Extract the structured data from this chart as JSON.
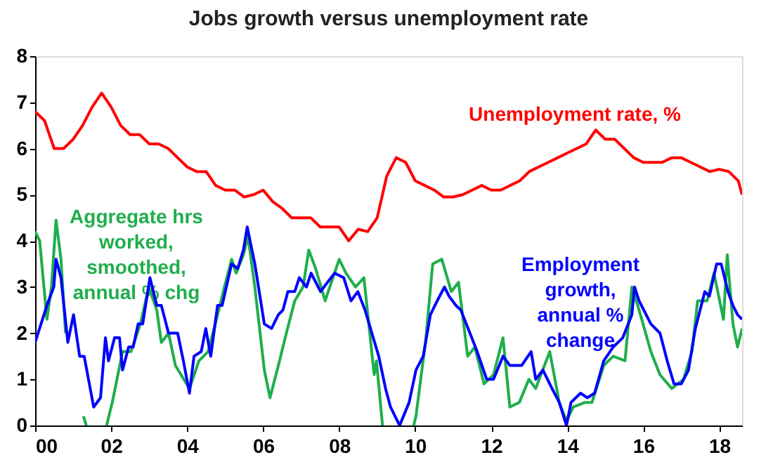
{
  "chart_data": {
    "type": "line",
    "title": "Jobs growth versus unemployment rate",
    "xlim": [
      2000,
      2018.6
    ],
    "xticks": [
      {
        "value": 2000,
        "label": "00"
      },
      {
        "value": 2002,
        "label": "02"
      },
      {
        "value": 2004,
        "label": "04"
      },
      {
        "value": 2006,
        "label": "06"
      },
      {
        "value": 2008,
        "label": "08"
      },
      {
        "value": 2010,
        "label": "10"
      },
      {
        "value": 2012,
        "label": "12"
      },
      {
        "value": 2014,
        "label": "14"
      },
      {
        "value": 2016,
        "label": "16"
      },
      {
        "value": 2018,
        "label": "18"
      }
    ],
    "ylim": [
      0,
      8
    ],
    "yticks": [
      0,
      1,
      2,
      3,
      4,
      5,
      6,
      7,
      8
    ],
    "grid": false,
    "legend": false,
    "marker": "none",
    "line_style": "solid",
    "series": [
      {
        "name": "Unemployment rate, %",
        "color": "#ff0000",
        "x": [
          2000,
          2000.25,
          2000.5,
          2000.75,
          2001,
          2001.25,
          2001.5,
          2001.75,
          2002,
          2002.25,
          2002.5,
          2002.75,
          2003,
          2003.25,
          2003.5,
          2003.75,
          2004,
          2004.25,
          2004.5,
          2004.75,
          2005,
          2005.25,
          2005.5,
          2005.75,
          2006,
          2006.25,
          2006.5,
          2006.75,
          2007,
          2007.25,
          2007.5,
          2007.75,
          2008,
          2008.25,
          2008.5,
          2008.75,
          2009,
          2009.25,
          2009.5,
          2009.75,
          2010,
          2010.25,
          2010.5,
          2010.75,
          2011,
          2011.25,
          2011.5,
          2011.75,
          2012,
          2012.25,
          2012.5,
          2012.75,
          2013,
          2013.25,
          2013.5,
          2013.75,
          2014,
          2014.25,
          2014.5,
          2014.75,
          2015,
          2015.25,
          2015.5,
          2015.75,
          2016,
          2016.25,
          2016.5,
          2016.75,
          2017,
          2017.25,
          2017.5,
          2017.75,
          2018,
          2018.25,
          2018.5,
          2018.6
        ],
        "values": [
          6.8,
          6.6,
          6.0,
          6.0,
          6.2,
          6.5,
          6.9,
          7.2,
          6.9,
          6.5,
          6.3,
          6.3,
          6.1,
          6.1,
          6.0,
          5.8,
          5.6,
          5.5,
          5.5,
          5.2,
          5.1,
          5.1,
          4.95,
          5.0,
          5.1,
          4.85,
          4.7,
          4.5,
          4.5,
          4.5,
          4.3,
          4.3,
          4.3,
          4.0,
          4.25,
          4.2,
          4.5,
          5.4,
          5.8,
          5.7,
          5.3,
          5.2,
          5.1,
          4.95,
          4.95,
          5.0,
          5.1,
          5.2,
          5.1,
          5.1,
          5.2,
          5.3,
          5.5,
          5.6,
          5.7,
          5.8,
          5.9,
          6.0,
          6.1,
          6.4,
          6.2,
          6.2,
          6.0,
          5.8,
          5.7,
          5.7,
          5.7,
          5.8,
          5.8,
          5.7,
          5.6,
          5.5,
          5.55,
          5.5,
          5.3,
          5.0
        ]
      },
      {
        "name": "Aggregate hrs\nworked,\nsmoothed,\nannual % chg",
        "color": "#1fae4b",
        "x": [
          2000,
          2000.12,
          2000.31,
          2000.43,
          2000.55,
          2000.68,
          2000.8,
          2000.92,
          2001.27,
          2001.35,
          2001.6,
          2001.88,
          2002.03,
          2002.3,
          2002.52,
          2002.77,
          2002.99,
          2003.2,
          2003.32,
          2003.51,
          2003.69,
          2004.06,
          2004.31,
          2004.55,
          2004.8,
          2004.98,
          2005.17,
          2005.29,
          2005.48,
          2005.6,
          2005.78,
          2006.03,
          2006.18,
          2006.4,
          2006.61,
          2006.83,
          2007.05,
          2007.2,
          2007.38,
          2007.63,
          2008.0,
          2008.18,
          2008.43,
          2008.65,
          2008.92,
          2008.98,
          2009.14,
          2009.5,
          2009.96,
          2010.02,
          2010.27,
          2010.46,
          2010.7,
          2010.95,
          2011.14,
          2011.38,
          2011.57,
          2011.81,
          2012.06,
          2012.31,
          2012.49,
          2012.74,
          2012.99,
          2013.17,
          2013.54,
          2013.79,
          2013.98,
          2014.16,
          2014.47,
          2014.65,
          2014.96,
          2015.21,
          2015.52,
          2015.7,
          2015.89,
          2016.2,
          2016.44,
          2016.75,
          2017.06,
          2017.28,
          2017.43,
          2017.68,
          2017.86,
          2018.11,
          2018.21,
          2018.36,
          2018.48,
          2018.6
        ],
        "values": [
          4.2,
          4.0,
          2.3,
          3.0,
          4.45,
          3.6,
          2.0,
          null,
          0.2,
          0.0,
          null,
          0.0,
          0.5,
          1.6,
          1.6,
          2.2,
          3.0,
          2.5,
          1.8,
          2.0,
          1.3,
          0.8,
          1.4,
          1.6,
          2.4,
          3.0,
          3.6,
          3.3,
          3.7,
          4.1,
          3.0,
          1.2,
          0.6,
          1.3,
          2.0,
          2.7,
          3.0,
          3.8,
          3.4,
          2.7,
          3.6,
          3.3,
          3.0,
          3.2,
          1.1,
          1.4,
          0.0,
          null,
          0.0,
          0.2,
          1.8,
          3.5,
          3.6,
          2.9,
          3.1,
          1.5,
          1.7,
          0.9,
          1.1,
          1.9,
          0.4,
          0.5,
          1.0,
          0.8,
          1.6,
          0.5,
          0.1,
          0.4,
          0.5,
          0.5,
          1.3,
          1.5,
          1.4,
          3.0,
          2.5,
          1.6,
          1.1,
          0.8,
          1.0,
          1.6,
          2.7,
          2.7,
          3.3,
          2.3,
          3.7,
          2.2,
          1.7,
          2.1
        ]
      },
      {
        "name": "Employment\ngrowth,\nannual %\nchange",
        "color": "#0000ff",
        "x": [
          2000,
          2000.31,
          2000.49,
          2000.55,
          2000.68,
          2000.86,
          2001.01,
          2001.17,
          2001.29,
          2001.54,
          2001.72,
          2001.85,
          2001.93,
          2002.09,
          2002.22,
          2002.3,
          2002.46,
          2002.58,
          2002.71,
          2002.83,
          2003.02,
          2003.2,
          2003.32,
          2003.51,
          2003.75,
          2003.9,
          2004.06,
          2004.18,
          2004.37,
          2004.49,
          2004.62,
          2004.8,
          2004.92,
          2005.17,
          2005.33,
          2005.48,
          2005.58,
          2005.78,
          2006.03,
          2006.22,
          2006.4,
          2006.52,
          2006.65,
          2006.83,
          2006.95,
          2007.14,
          2007.26,
          2007.51,
          2007.69,
          2007.88,
          2008.12,
          2008.31,
          2008.49,
          2008.68,
          2008.86,
          2009.04,
          2009.22,
          2009.35,
          2009.47,
          2009.59,
          2009.84,
          2010.02,
          2010.21,
          2010.4,
          2010.58,
          2010.77,
          2010.89,
          2011.07,
          2011.2,
          2011.44,
          2011.63,
          2011.88,
          2012.06,
          2012.31,
          2012.49,
          2012.8,
          2013.05,
          2013.17,
          2013.36,
          2013.6,
          2013.79,
          2013.98,
          2014.1,
          2014.35,
          2014.53,
          2014.72,
          2014.96,
          2015.21,
          2015.46,
          2015.7,
          2015.77,
          2015.89,
          2016.2,
          2016.44,
          2016.63,
          2016.81,
          2017.0,
          2017.19,
          2017.37,
          2017.62,
          2017.74,
          2017.93,
          2018.05,
          2018.23,
          2018.36,
          2018.48,
          2018.6
        ],
        "values": [
          1.8,
          2.6,
          3.0,
          3.6,
          3.2,
          1.8,
          2.4,
          1.5,
          1.5,
          0.4,
          0.6,
          1.9,
          1.4,
          1.9,
          1.9,
          1.2,
          1.7,
          1.7,
          2.2,
          2.2,
          3.2,
          2.6,
          2.6,
          2.0,
          2.0,
          1.4,
          0.7,
          1.5,
          1.6,
          2.1,
          1.5,
          2.6,
          2.6,
          3.5,
          3.4,
          3.8,
          4.3,
          3.5,
          2.2,
          2.1,
          2.4,
          2.5,
          2.9,
          2.9,
          3.2,
          3.0,
          3.3,
          2.9,
          3.1,
          3.3,
          3.2,
          2.7,
          2.9,
          2.5,
          2.0,
          1.5,
          0.8,
          0.4,
          0.2,
          0.0,
          0.5,
          1.2,
          1.5,
          2.4,
          2.7,
          3.0,
          2.8,
          2.6,
          2.5,
          2.0,
          1.6,
          1.0,
          1.0,
          1.5,
          1.3,
          1.3,
          1.6,
          1.0,
          1.2,
          0.8,
          0.5,
          0.0,
          0.5,
          0.7,
          0.6,
          0.7,
          1.4,
          1.7,
          1.9,
          2.4,
          3.0,
          2.7,
          2.2,
          2.0,
          1.4,
          0.9,
          0.9,
          1.2,
          2.1,
          2.9,
          2.8,
          3.5,
          3.5,
          2.9,
          2.6,
          2.4,
          2.3
        ]
      }
    ]
  }
}
